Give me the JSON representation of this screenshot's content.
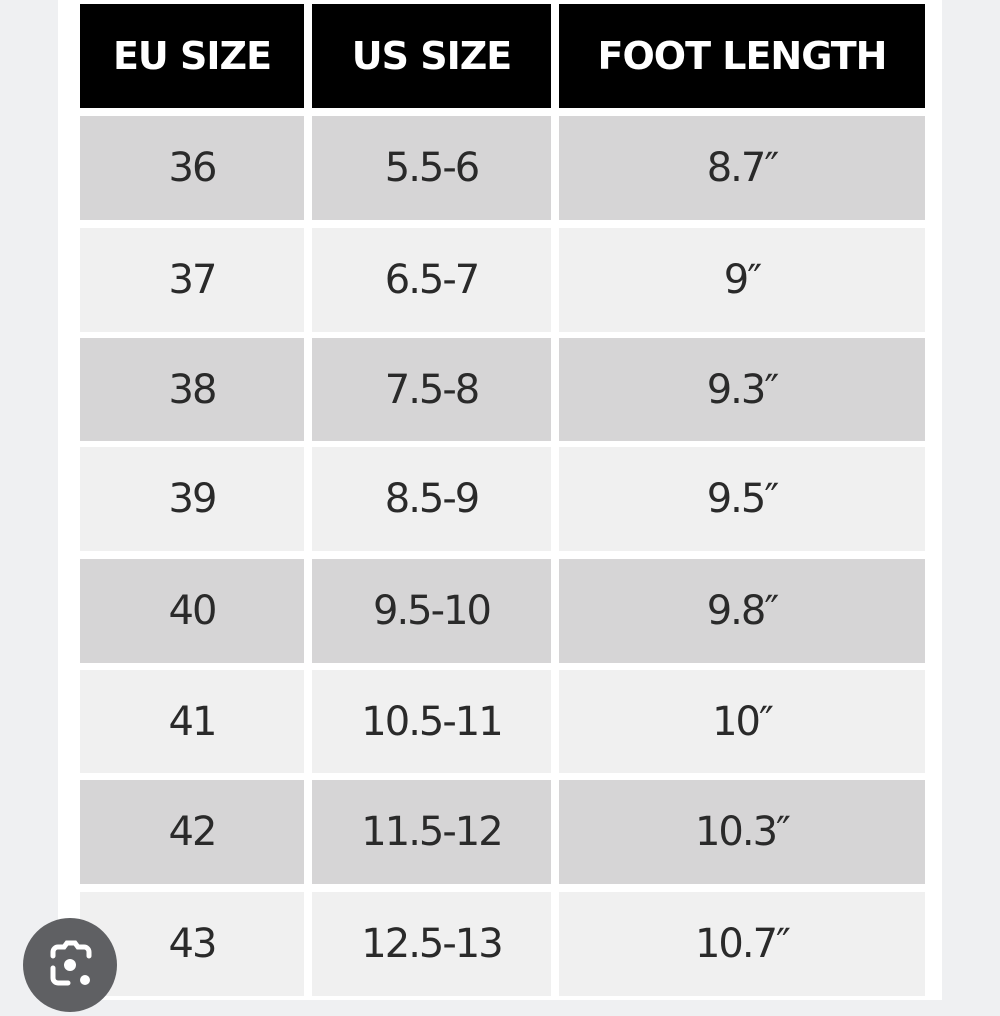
{
  "table": {
    "headers": [
      "EU SIZE",
      "US SIZE",
      "FOOT LENGTH"
    ],
    "rows": [
      [
        "36",
        "5.5-6",
        "8.7″"
      ],
      [
        "37",
        "6.5-7",
        "9″"
      ],
      [
        "38",
        "7.5-8",
        "9.3″"
      ],
      [
        "39",
        "8.5-9",
        "9.5″"
      ],
      [
        "40",
        "9.5-10",
        "9.8″"
      ],
      [
        "41",
        "10.5-11",
        "10″"
      ],
      [
        "42",
        "11.5-12",
        "10.3″"
      ],
      [
        "43",
        "12.5-13",
        "10.7″"
      ]
    ]
  },
  "colors": {
    "header_bg": "#000000",
    "row_dark": "#d6d5d6",
    "row_light": "#f0f0f0",
    "lens_button": "#5f6063"
  },
  "overlay": {
    "icon": "google-lens-icon"
  }
}
